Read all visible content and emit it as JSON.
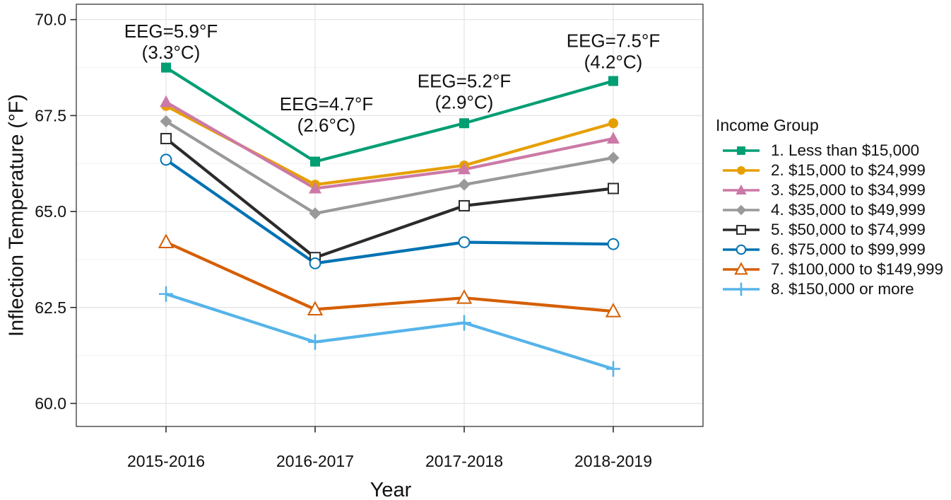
{
  "chart_data": {
    "type": "line",
    "title": "",
    "xlabel": "Year",
    "ylabel": "Inflection Temperature (°F)",
    "categories": [
      "2015-2016",
      "2016-2017",
      "2017-2018",
      "2018-2019"
    ],
    "y_ticks": {
      "values": [
        70.0,
        67.5,
        65.0,
        62.5,
        60.0
      ],
      "labels": [
        "70.0",
        "67.5",
        "65.0",
        "62.5",
        "60.0"
      ]
    },
    "y_minor_ticks": [
      68.75,
      66.25,
      63.75,
      61.25
    ],
    "ylim": [
      59.4,
      70.4
    ],
    "grid": "horizontal major+minor, vertical at categories",
    "legend": {
      "title": "Income Group",
      "position": "right"
    },
    "series": [
      {
        "name": "1. Less than $15,000",
        "color": "#009E73",
        "marker": "square",
        "values": [
          68.75,
          66.3,
          67.3,
          68.4
        ]
      },
      {
        "name": "2. $15,000 to $24,999",
        "color": "#E69F00",
        "marker": "circle",
        "values": [
          67.75,
          65.7,
          66.2,
          67.3
        ]
      },
      {
        "name": "3. $25,000 to $34,999",
        "color": "#CC79A7",
        "marker": "triangle",
        "values": [
          67.85,
          65.6,
          66.1,
          66.9
        ]
      },
      {
        "name": "4. $35,000 to $49,999",
        "color": "#999999",
        "marker": "diamond",
        "values": [
          67.35,
          64.95,
          65.7,
          66.4
        ]
      },
      {
        "name": "5. $50,000 to $74,999",
        "color": "#2B2B2B",
        "marker": "square-open",
        "values": [
          66.9,
          63.8,
          65.15,
          65.6
        ]
      },
      {
        "name": "6. $75,000 to $99,999",
        "color": "#0072B2",
        "marker": "circle-open",
        "values": [
          66.35,
          63.65,
          64.2,
          64.15
        ]
      },
      {
        "name": "7. $100,000 to $149,999",
        "color": "#D55E00",
        "marker": "triangle-open",
        "values": [
          64.2,
          62.45,
          62.75,
          62.4
        ]
      },
      {
        "name": "8. $150,000 or more",
        "color": "#56B4E9",
        "marker": "plus",
        "values": [
          62.85,
          61.6,
          62.1,
          60.9
        ]
      }
    ],
    "annotations": [
      {
        "label": "EEG=5.9°F",
        "sub": "(3.3°C)",
        "year_index": 0,
        "y": 69.7,
        "dx": 7
      },
      {
        "label": "EEG=4.7°F",
        "sub": "(2.6°C)",
        "year_index": 1,
        "y": 67.8,
        "dx": 16
      },
      {
        "label": "EEG=5.2°F",
        "sub": "(2.9°C)",
        "year_index": 2,
        "y": 68.4,
        "dx": 0
      },
      {
        "label": "EEG=7.5°F",
        "sub": "(4.2°C)",
        "year_index": 3,
        "y": 69.45,
        "dx": 0
      }
    ],
    "colors": {
      "panel_border": "#454545",
      "grid_major": "#E7E7E7",
      "grid_minor": "#F3F3F3",
      "tick": "#2B2B2B",
      "text": "#111111",
      "background": "#FFFFFF"
    }
  }
}
